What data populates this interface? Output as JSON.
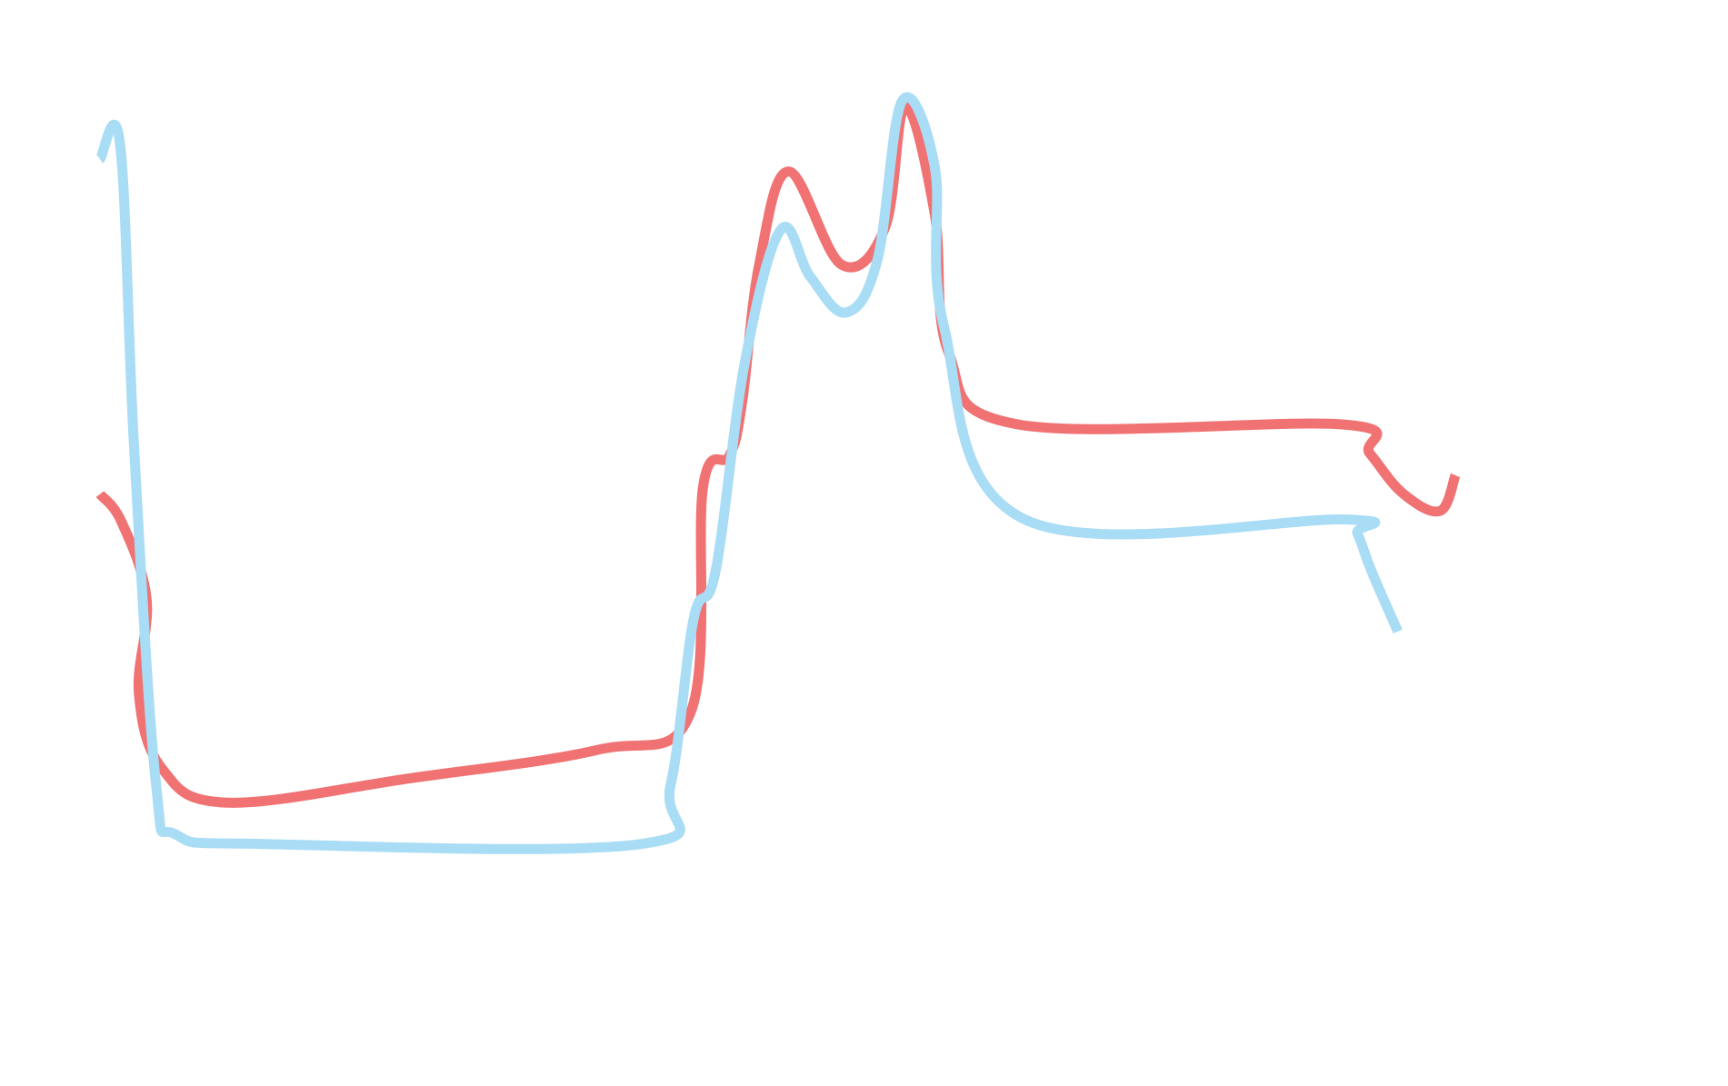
{
  "chart_data": {
    "type": "line",
    "title": "",
    "xlabel": "",
    "ylabel": "",
    "grid": false,
    "legend": "none",
    "xlim": [
      0,
      100
    ],
    "ylim": [
      0,
      100
    ],
    "series": [
      {
        "color": "#f07272",
        "points": [
          [
            0,
            55.2
          ],
          [
            1.4,
            52.2
          ],
          [
            3.0,
            44.0
          ],
          [
            2.5,
            34.0
          ],
          [
            4.0,
            26.0
          ],
          [
            8.2,
            22.4
          ],
          [
            20.0,
            25.0
          ],
          [
            32.0,
            28.0
          ],
          [
            38.0,
            32.0
          ],
          [
            38.8,
            56.0
          ],
          [
            40.5,
            59.3
          ],
          [
            41.3,
            64.8
          ],
          [
            42.4,
            79.5
          ],
          [
            44.3,
            89.5
          ],
          [
            47.7,
            79.6
          ],
          [
            50.5,
            83.5
          ],
          [
            51.8,
            96.4
          ],
          [
            53.7,
            85.0
          ],
          [
            54.6,
            70.2
          ],
          [
            59.1,
            62.6
          ],
          [
            80.0,
            62.6
          ],
          [
            81.7,
            59.5
          ],
          [
            83.8,
            55.3
          ],
          [
            86.2,
            53.4
          ],
          [
            87.2,
            57.2
          ]
        ]
      },
      {
        "color": "#a9dcf5",
        "points": [
          [
            0,
            90.8
          ],
          [
            1.3,
            92.3
          ],
          [
            2.2,
            60.0
          ],
          [
            3.6,
            24.4
          ],
          [
            4.9,
            19.0
          ],
          [
            10.6,
            18.0
          ],
          [
            34.8,
            18.0
          ],
          [
            36.7,
            24.2
          ],
          [
            38.2,
            42.0
          ],
          [
            39.6,
            47.0
          ],
          [
            41.5,
            69.3
          ],
          [
            43.8,
            83.3
          ],
          [
            45.7,
            78.3
          ],
          [
            48.0,
            74.5
          ],
          [
            50.0,
            80.0
          ],
          [
            51.6,
            97.0
          ],
          [
            53.7,
            90.0
          ],
          [
            54.3,
            73.0
          ],
          [
            59.5,
            52.5
          ],
          [
            80.2,
            52.5
          ],
          [
            80.9,
            51.0
          ],
          [
            81.8,
            47.0
          ],
          [
            83.5,
            40.6
          ]
        ]
      }
    ]
  }
}
